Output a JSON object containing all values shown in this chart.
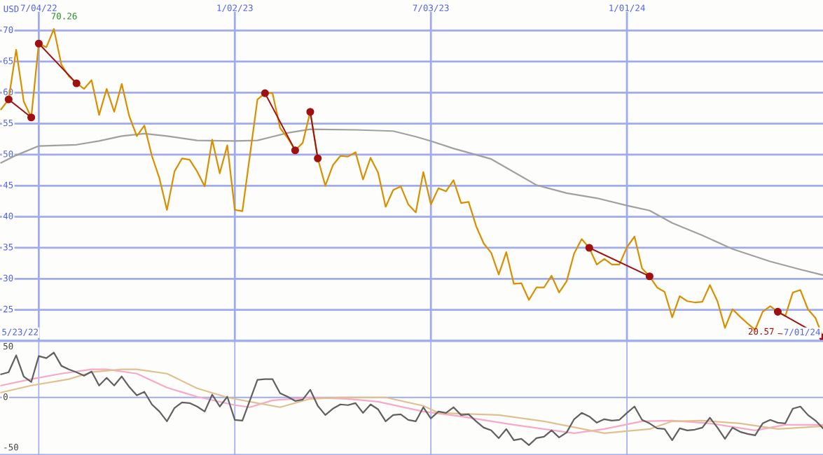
{
  "chart_data": [
    {
      "type": "line",
      "ylabel": "USD",
      "x": [
        "2022-05-30",
        "2022-06-06",
        "2022-06-13",
        "2022-06-20",
        "2022-06-27",
        "2022-07-04",
        "2022-07-11",
        "2022-07-18",
        "2022-07-25",
        "2022-08-01",
        "2022-08-08",
        "2022-08-15",
        "2022-08-22",
        "2022-08-29",
        "2022-09-05",
        "2022-09-12",
        "2022-09-19",
        "2022-09-26",
        "2022-10-03",
        "2022-10-10",
        "2022-10-17",
        "2022-10-24",
        "2022-10-31",
        "2022-11-07",
        "2022-11-14",
        "2022-11-21",
        "2022-11-28",
        "2022-12-05",
        "2022-12-12",
        "2022-12-19",
        "2022-12-26",
        "2023-01-02",
        "2023-01-09",
        "2023-01-16",
        "2023-01-23",
        "2023-01-30",
        "2023-02-06",
        "2023-02-13",
        "2023-02-20",
        "2023-02-27",
        "2023-03-06",
        "2023-03-13",
        "2023-03-20",
        "2023-03-27",
        "2023-04-03",
        "2023-04-10",
        "2023-04-17",
        "2023-04-24",
        "2023-05-01",
        "2023-05-08",
        "2023-05-15",
        "2023-05-22",
        "2023-05-29",
        "2023-06-05",
        "2023-06-12",
        "2023-06-19",
        "2023-06-26",
        "2023-07-03",
        "2023-07-10",
        "2023-07-17",
        "2023-07-24",
        "2023-07-31",
        "2023-08-07",
        "2023-08-14",
        "2023-08-21",
        "2023-08-28",
        "2023-09-04",
        "2023-09-11",
        "2023-09-18",
        "2023-09-25",
        "2023-10-02",
        "2023-10-09",
        "2023-10-16",
        "2023-10-23",
        "2023-10-30",
        "2023-11-06",
        "2023-11-13",
        "2023-11-20",
        "2023-11-27",
        "2023-12-04",
        "2023-12-11",
        "2023-12-18",
        "2023-12-25",
        "2024-01-01",
        "2024-01-08",
        "2024-01-15",
        "2024-01-22",
        "2024-01-29",
        "2024-02-05",
        "2024-02-12",
        "2024-02-19",
        "2024-02-26",
        "2024-03-04",
        "2024-03-11",
        "2024-03-18",
        "2024-03-25",
        "2024-04-01",
        "2024-04-08",
        "2024-04-15",
        "2024-04-22",
        "2024-04-29",
        "2024-05-06",
        "2024-05-13",
        "2024-05-20",
        "2024-05-27",
        "2024-06-03",
        "2024-06-10",
        "2024-06-17",
        "2024-06-24",
        "2024-07-01"
      ],
      "series": [
        {
          "color": "#a0a0a0",
          "x": [
            "2022-05-30",
            "2022-06-13",
            "2022-07-04",
            "2022-08-08",
            "2022-08-29",
            "2022-09-19",
            "2022-10-10",
            "2022-10-31",
            "2022-11-28",
            "2023-01-02",
            "2023-01-23",
            "2023-02-06",
            "2023-02-20",
            "2023-03-13",
            "2023-04-24",
            "2023-05-29",
            "2023-06-19",
            "2023-07-03",
            "2023-07-24",
            "2023-08-28",
            "2023-10-09",
            "2023-11-06",
            "2023-12-04",
            "2024-01-01",
            "2024-01-22",
            "2024-02-12",
            "2024-03-11",
            "2024-04-08",
            "2024-05-13",
            "2024-06-10",
            "2024-07-01"
          ],
          "values": [
            48.7,
            49.9,
            51.4,
            51.6,
            52.2,
            53.0,
            53.4,
            53.0,
            52.3,
            52.2,
            52.3,
            52.9,
            53.5,
            54.1,
            54.0,
            53.8,
            52.9,
            52.2,
            51.0,
            49.3,
            45.1,
            43.8,
            43.0,
            41.8,
            41.0,
            39.0,
            37.0,
            34.8,
            32.8,
            31.5,
            30.6
          ]
        },
        {
          "color": "#d99000",
          "values": [
            57.3,
            58.9,
            66.9,
            58.6,
            56.0,
            67.9,
            67.3,
            70.26,
            64.5,
            62.6,
            61.5,
            60.6,
            62.0,
            56.4,
            60.6,
            56.9,
            61.4,
            56.2,
            53.0,
            54.7,
            49.8,
            46.2,
            41.1,
            47.3,
            49.4,
            49.2,
            47.3,
            44.9,
            52.4,
            47.0,
            51.5,
            41.1,
            40.9,
            49.9,
            58.9,
            59.9,
            59.9,
            54.3,
            52.7,
            50.7,
            51.9,
            56.9,
            49.4,
            45.0,
            48.3,
            49.8,
            49.7,
            50.4,
            46.0,
            49.5,
            47.1,
            41.6,
            44.3,
            44.9,
            42.0,
            40.7,
            47.2,
            42.0,
            44.6,
            44.1,
            45.9,
            42.2,
            42.4,
            38.5,
            35.7,
            34.2,
            30.7,
            34.3,
            29.2,
            29.3,
            26.6,
            28.6,
            28.6,
            30.5,
            27.8,
            29.6,
            34.1,
            36.4,
            35.0,
            32.3,
            33.2,
            32.3,
            32.3,
            35.1,
            36.8,
            31.7,
            30.4,
            28.6,
            27.9,
            23.8,
            27.2,
            26.4,
            26.2,
            26.3,
            29.0,
            26.4,
            22.1,
            25.1,
            23.9,
            22.8,
            21.8,
            24.7,
            25.6,
            24.7,
            24.0,
            27.8,
            28.2,
            25.1,
            23.7,
            20.57
          ]
        },
        {
          "color": "#a01010",
          "marker": "circle",
          "x": [
            "2022-06-06",
            "2022-06-27"
          ],
          "values": [
            58.9,
            56.0
          ]
        },
        {
          "color": "#a01010",
          "marker": "circle",
          "x": [
            "2022-07-04",
            "2022-08-08"
          ],
          "values": [
            67.9,
            61.5
          ]
        },
        {
          "color": "#a01010",
          "marker": "circle",
          "x": [
            "2023-01-30",
            "2023-02-27"
          ],
          "values": [
            59.9,
            50.7
          ]
        },
        {
          "color": "#a01010",
          "marker": "circle",
          "x": [
            "2023-03-13",
            "2023-03-20"
          ],
          "values": [
            56.9,
            49.4
          ]
        },
        {
          "color": "#a01010",
          "marker": "circle",
          "x": [
            "2023-11-27",
            "2024-01-22"
          ],
          "values": [
            35.0,
            30.4
          ]
        },
        {
          "color": "#a01010",
          "marker": "circle",
          "x": [
            "2024-05-20",
            "2024-07-01"
          ],
          "values": [
            24.7,
            20.57
          ]
        }
      ],
      "xlim": [
        "2022-05-29",
        "2024-07-01"
      ],
      "xticks": [
        {
          "value": "2022-07-04",
          "label": "7/04/22"
        },
        {
          "value": "2023-01-02",
          "label": "1/02/23"
        },
        {
          "value": "2023-07-03",
          "label": "7/03/23"
        },
        {
          "value": "2024-01-01",
          "label": "1/01/24"
        }
      ],
      "ylim": [
        20,
        73
      ],
      "yticks": [
        25,
        30,
        35,
        40,
        45,
        50,
        55,
        60,
        65,
        70
      ],
      "grid": true,
      "annotations": [
        {
          "text": "70.26",
          "x": "2022-07-18",
          "y": 70.26
        },
        {
          "text": "20.57",
          "x": "2024-07-01",
          "y": 20.57
        },
        "5/23/22",
        "7/01/24"
      ]
    },
    {
      "type": "line",
      "x": [
        "2022-05-30",
        "2022-06-06",
        "2022-06-13",
        "2022-06-20",
        "2022-06-27",
        "2022-07-04",
        "2022-07-11",
        "2022-07-18",
        "2022-07-25",
        "2022-08-01",
        "2022-08-08",
        "2022-08-15",
        "2022-08-22",
        "2022-08-29",
        "2022-09-05",
        "2022-09-12",
        "2022-09-19",
        "2022-09-26",
        "2022-10-03",
        "2022-10-10",
        "2022-10-17",
        "2022-10-24",
        "2022-10-31",
        "2022-11-07",
        "2022-11-14",
        "2022-11-21",
        "2022-11-28",
        "2022-12-05",
        "2022-12-12",
        "2022-12-19",
        "2022-12-26",
        "2023-01-02",
        "2023-01-09",
        "2023-01-16",
        "2023-01-23",
        "2023-01-30",
        "2023-02-06",
        "2023-02-13",
        "2023-02-20",
        "2023-02-27",
        "2023-03-06",
        "2023-03-13",
        "2023-03-20",
        "2023-03-27",
        "2023-04-03",
        "2023-04-10",
        "2023-04-17",
        "2023-04-24",
        "2023-05-01",
        "2023-05-08",
        "2023-05-15",
        "2023-05-22",
        "2023-05-29",
        "2023-06-05",
        "2023-06-12",
        "2023-06-19",
        "2023-06-26",
        "2023-07-03",
        "2023-07-10",
        "2023-07-17",
        "2023-07-24",
        "2023-07-31",
        "2023-08-07",
        "2023-08-14",
        "2023-08-21",
        "2023-08-28",
        "2023-09-04",
        "2023-09-11",
        "2023-09-18",
        "2023-09-25",
        "2023-10-02",
        "2023-10-09",
        "2023-10-16",
        "2023-10-23",
        "2023-10-30",
        "2023-11-06",
        "2023-11-13",
        "2023-11-20",
        "2023-11-27",
        "2023-12-04",
        "2023-12-11",
        "2023-12-18",
        "2023-12-25",
        "2024-01-01",
        "2024-01-08",
        "2024-01-15",
        "2024-01-22",
        "2024-01-29",
        "2024-02-05",
        "2024-02-12",
        "2024-02-19",
        "2024-02-26",
        "2024-03-04",
        "2024-03-11",
        "2024-03-18",
        "2024-03-25",
        "2024-04-01",
        "2024-04-08",
        "2024-04-15",
        "2024-04-22",
        "2024-04-29",
        "2024-05-06",
        "2024-05-13",
        "2024-05-20",
        "2024-05-27",
        "2024-06-03",
        "2024-06-10",
        "2024-06-17",
        "2024-06-24",
        "2024-07-01"
      ],
      "series": [
        {
          "color": "#f8a8c8",
          "x": [
            "2022-05-30",
            "2022-06-27",
            "2022-07-25",
            "2022-08-22",
            "2022-09-05",
            "2022-10-03",
            "2022-10-31",
            "2022-11-28",
            "2023-01-02",
            "2023-01-16",
            "2023-02-06",
            "2023-03-13",
            "2023-04-17",
            "2023-05-15",
            "2023-06-26",
            "2023-07-31",
            "2023-09-18",
            "2023-11-13",
            "2023-12-11",
            "2024-01-15",
            "2024-02-12",
            "2024-03-18",
            "2024-04-29",
            "2024-05-27",
            "2024-07-01"
          ],
          "values": [
            11.8,
            18.1,
            23.6,
            27.8,
            27.8,
            23.6,
            9.7,
            0.7,
            -7.6,
            -9.7,
            -2.8,
            0,
            -1.4,
            -4.2,
            -13.9,
            -18.8,
            -27.1,
            -35.4,
            -31.3,
            -23.6,
            -22.9,
            -25.7,
            -32.6,
            -27.1,
            -27.1
          ]
        },
        {
          "color": "#e0c090",
          "x": [
            "2022-05-30",
            "2022-06-27",
            "2022-08-01",
            "2022-08-22",
            "2022-09-19",
            "2022-10-03",
            "2022-10-31",
            "2022-11-28",
            "2022-12-26",
            "2023-01-23",
            "2023-02-13",
            "2023-03-13",
            "2023-04-10",
            "2023-05-22",
            "2023-06-26",
            "2023-07-10",
            "2023-09-04",
            "2023-10-16",
            "2023-12-11",
            "2024-01-22",
            "2024-02-12",
            "2024-03-11",
            "2024-04-15",
            "2024-05-20",
            "2024-07-01"
          ],
          "values": [
            4.9,
            11.8,
            18.1,
            25,
            27.8,
            27.8,
            23.6,
            9,
            0,
            -5.6,
            -9.7,
            -1.4,
            0,
            0,
            -8.3,
            -15.3,
            -17.4,
            -23.6,
            -35.4,
            -31.3,
            -23.6,
            -22.9,
            -25.7,
            -31.3,
            -28.5
          ]
        },
        {
          "color": "#606060",
          "values": [
            22.9,
            25,
            41.7,
            20.8,
            15.3,
            41,
            38.9,
            44.4,
            31.3,
            27.8,
            25,
            21.5,
            25.7,
            11.8,
            19.4,
            11.8,
            20.8,
            10.4,
            2.1,
            5.6,
            -6.9,
            -13.9,
            -23.6,
            -10.4,
            -4.9,
            -5.6,
            -9,
            -13.9,
            2.8,
            -9,
            0.7,
            -22.2,
            -22.9,
            -2.8,
            17.4,
            18.1,
            18.1,
            4.2,
            0.7,
            -3.5,
            -2.1,
            7.6,
            -8.3,
            -17.4,
            -11.1,
            -6.9,
            -7.6,
            -5.6,
            -15.3,
            -6.9,
            -11.8,
            -23.6,
            -17.4,
            -16.7,
            -22.2,
            -23.6,
            -9.7,
            -20.8,
            -13.9,
            -15.3,
            -9.7,
            -17.4,
            -16.7,
            -23.6,
            -29.9,
            -32.6,
            -40.3,
            -31.3,
            -42.4,
            -41,
            -47.2,
            -40.3,
            -38.9,
            -32.6,
            -39.6,
            -34.7,
            -21.5,
            -15.3,
            -18.8,
            -25,
            -21.5,
            -22.9,
            -22.2,
            -15.3,
            -9,
            -22.2,
            -25.7,
            -30.6,
            -31.3,
            -42.4,
            -30.6,
            -32.6,
            -31.9,
            -29.9,
            -20.1,
            -29.9,
            -41,
            -29.9,
            -34,
            -36.1,
            -37.5,
            -25.7,
            -22.2,
            -25,
            -25.7,
            -11.1,
            -9,
            -17.4,
            -22.9,
            -30.6
          ]
        }
      ],
      "xlim": [
        "2022-05-29",
        "2024-07-01"
      ],
      "xticks": [
        {
          "value": "2022-07-04",
          "label": null
        },
        {
          "value": "2023-01-02",
          "label": null
        },
        {
          "value": "2023-07-03",
          "label": null
        },
        {
          "value": "2024-01-01",
          "label": null
        }
      ],
      "ylim": [
        -57,
        56
      ],
      "yticks": [
        -50,
        0,
        50
      ],
      "grid": "x",
      "tick_labels": "y",
      "ref_lines": [
        {
          "axis": "y",
          "value": 0,
          "color": "#a0aaee"
        }
      ]
    }
  ]
}
